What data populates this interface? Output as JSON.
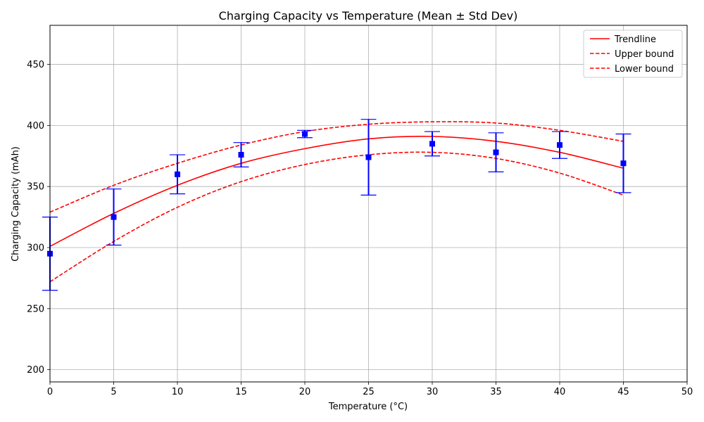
{
  "chart_data": {
    "type": "scatter",
    "title": "Charging Capacity vs Temperature (Mean ± Std Dev)",
    "xlabel": "Temperature (°C)",
    "ylabel": "Charging Capacity (mAh)",
    "xlim": [
      0,
      50
    ],
    "ylim": [
      190,
      482
    ],
    "x_ticks": [
      0,
      5,
      10,
      15,
      20,
      25,
      30,
      35,
      40,
      45,
      50
    ],
    "y_ticks": [
      200,
      250,
      300,
      350,
      400,
      450
    ],
    "grid": true,
    "legend_position": "top-right",
    "points": {
      "x": [
        0,
        5,
        10,
        15,
        20,
        25,
        30,
        35,
        40,
        45
      ],
      "mean": [
        295,
        325,
        360,
        376,
        393,
        374,
        385,
        378,
        384,
        369
      ],
      "std": [
        30,
        23,
        16,
        10,
        3,
        31,
        10,
        16,
        11,
        24
      ],
      "color": "#0000ff"
    },
    "series": [
      {
        "name": "Trendline",
        "style": "solid",
        "color": "#ff0000",
        "x": [
          0,
          5,
          10,
          15,
          20,
          25,
          30,
          35,
          40,
          45
        ],
        "y": [
          301,
          328,
          351,
          369,
          381,
          389,
          391,
          387,
          378,
          365
        ]
      },
      {
        "name": "Upper bound",
        "style": "dashed",
        "color": "#ff0000",
        "x": [
          0,
          5,
          10,
          15,
          20,
          25,
          30,
          35,
          40,
          45
        ],
        "y": [
          329,
          351,
          369,
          384,
          395,
          401,
          403,
          402,
          396,
          387
        ]
      },
      {
        "name": "Lower bound",
        "style": "dashed",
        "color": "#ff0000",
        "x": [
          0,
          5,
          10,
          15,
          20,
          25,
          30,
          35,
          40,
          45
        ],
        "y": [
          272,
          305,
          333,
          354,
          368,
          376,
          378,
          373,
          361,
          343
        ]
      }
    ]
  }
}
